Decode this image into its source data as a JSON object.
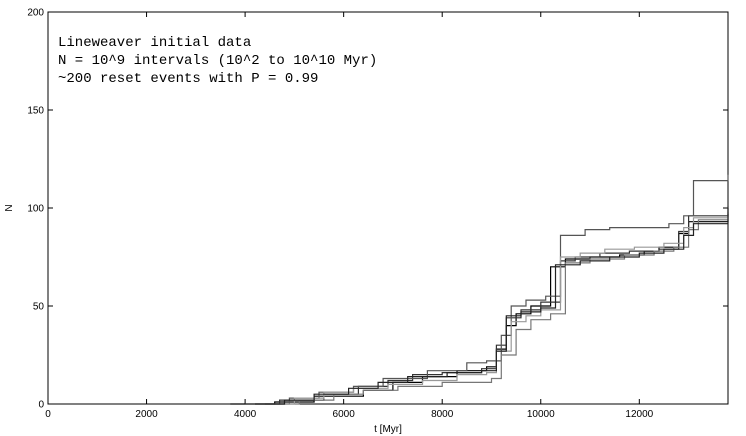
{
  "chart_data": {
    "type": "line",
    "title": "",
    "xlabel": "t [Myr]",
    "ylabel": "N",
    "xlim": [
      0,
      13800
    ],
    "ylim": [
      0,
      200
    ],
    "xticks": [
      0,
      2000,
      4000,
      6000,
      8000,
      10000,
      12000
    ],
    "yticks": [
      0,
      50,
      100,
      150,
      200
    ],
    "grid": false,
    "legend": "none",
    "line_style": "step",
    "annotations": [
      "Lineweaver initial data",
      "N = 10^9 intervals (10^2 to 10^10 Myr)",
      "~200 reset events with P = 0.99"
    ],
    "series": [
      {
        "color": "#000000",
        "x": [
          3700,
          4600,
          5400,
          6400,
          7000,
          7600,
          8300,
          8900,
          9100,
          9300,
          9500,
          9800,
          10200,
          10500,
          11000,
          11600,
          12100,
          12400,
          12800,
          13000,
          13800
        ],
        "y": [
          0,
          1,
          4,
          7,
          11,
          14,
          17,
          19,
          28,
          40,
          46,
          50,
          70,
          74,
          75,
          76,
          78,
          80,
          87,
          93,
          97
        ]
      },
      {
        "color": "#333333",
        "x": [
          4000,
          4700,
          5600,
          6300,
          6900,
          7400,
          8000,
          8800,
          9100,
          9300,
          9600,
          10000,
          10400,
          10700,
          11200,
          11800,
          12400,
          12800,
          13000,
          13800
        ],
        "y": [
          0,
          2,
          5,
          9,
          12,
          15,
          16,
          18,
          30,
          44,
          48,
          52,
          73,
          75,
          77,
          78,
          79,
          88,
          96,
          100
        ]
      },
      {
        "color": "#555555",
        "x": [
          4400,
          4900,
          5500,
          6200,
          6800,
          7700,
          8500,
          8900,
          9200,
          9400,
          9700,
          10100,
          10400,
          10900,
          11400,
          12000,
          12600,
          12900,
          13100,
          13800
        ],
        "y": [
          0,
          3,
          6,
          9,
          13,
          17,
          21,
          22,
          35,
          50,
          53,
          55,
          86,
          89,
          90,
          90,
          92,
          96,
          114,
          117
        ]
      },
      {
        "color": "#777777",
        "x": [
          4600,
          5100,
          5800,
          6400,
          7100,
          8000,
          8700,
          9000,
          9200,
          9500,
          9800,
          10200,
          10500,
          11000,
          11700,
          12300,
          12700,
          13000,
          13200,
          13800
        ],
        "y": [
          0,
          2,
          5,
          7,
          9,
          11,
          11,
          13,
          25,
          38,
          43,
          46,
          72,
          74,
          76,
          78,
          80,
          89,
          94,
          94
        ]
      },
      {
        "color": "#999999",
        "x": [
          4500,
          5000,
          5600,
          6200,
          6900,
          7600,
          8300,
          8900,
          9100,
          9400,
          9700,
          10000,
          10400,
          10800,
          11300,
          11900,
          12500,
          12900,
          13100,
          13800
        ],
        "y": [
          0,
          3,
          6,
          8,
          10,
          12,
          15,
          16,
          27,
          42,
          45,
          48,
          75,
          77,
          79,
          80,
          82,
          90,
          95,
          98
        ]
      },
      {
        "color": "#222222",
        "x": [
          4200,
          4800,
          5400,
          6100,
          6700,
          7300,
          8100,
          8800,
          9100,
          9300,
          9600,
          10000,
          10300,
          10800,
          11400,
          12000,
          12500,
          12900,
          13100,
          13800
        ],
        "y": [
          0,
          2,
          5,
          8,
          11,
          14,
          16,
          17,
          27,
          45,
          47,
          49,
          71,
          73,
          75,
          77,
          79,
          86,
          92,
          101
        ]
      }
    ]
  }
}
